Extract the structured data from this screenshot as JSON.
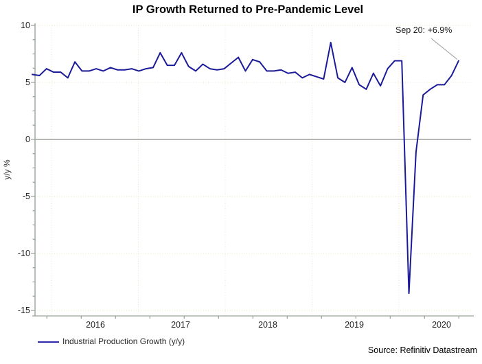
{
  "title": "IP Growth Returned to Pre-Pandemic Level",
  "annotation": {
    "text": "Sep 20: +6.9%",
    "points_to": "2020-09"
  },
  "legend": {
    "label": "Industrial Production Growth (y/y)"
  },
  "source": "Source: Refinitiv Datastream",
  "y_axis_label": "y/y %",
  "chart_data": {
    "type": "line",
    "title": "IP Growth Returned to Pre-Pandemic Level",
    "ylabel": "y/y %",
    "xlabel": "",
    "ylim": [
      -15.5,
      10
    ],
    "grid": "dotted",
    "legend_position": "bottom-left",
    "y_ticks": [
      10,
      5,
      0,
      -5,
      -10,
      -15
    ],
    "y_tick_labels": [
      "10",
      "5",
      "0",
      "-5",
      "-10",
      "-15"
    ],
    "x_tick_labels": [
      "2016",
      "2017",
      "2018",
      "2019",
      "2020"
    ],
    "x": [
      "2015-09",
      "2015-10",
      "2015-11",
      "2015-12",
      "2016-01",
      "2016-02",
      "2016-03",
      "2016-04",
      "2016-05",
      "2016-06",
      "2016-07",
      "2016-08",
      "2016-09",
      "2016-10",
      "2016-11",
      "2016-12",
      "2017-01",
      "2017-02",
      "2017-03",
      "2017-04",
      "2017-05",
      "2017-06",
      "2017-07",
      "2017-08",
      "2017-09",
      "2017-10",
      "2017-11",
      "2017-12",
      "2018-01",
      "2018-02",
      "2018-03",
      "2018-04",
      "2018-05",
      "2018-06",
      "2018-07",
      "2018-08",
      "2018-09",
      "2018-10",
      "2018-11",
      "2018-12",
      "2019-01",
      "2019-02",
      "2019-03",
      "2019-04",
      "2019-05",
      "2019-06",
      "2019-07",
      "2019-08",
      "2019-09",
      "2019-10",
      "2019-11",
      "2019-12",
      "2020-01",
      "2020-02",
      "2020-03",
      "2020-04",
      "2020-05",
      "2020-06",
      "2020-07",
      "2020-08",
      "2020-09"
    ],
    "series": [
      {
        "name": "Industrial Production Growth (y/y)",
        "values": [
          5.7,
          5.6,
          6.2,
          5.9,
          5.9,
          5.4,
          6.8,
          6.0,
          6.0,
          6.2,
          6.0,
          6.3,
          6.1,
          6.1,
          6.2,
          6.0,
          6.2,
          6.3,
          7.6,
          6.5,
          6.5,
          7.6,
          6.4,
          6.0,
          6.6,
          6.2,
          6.1,
          6.2,
          6.7,
          7.2,
          6.0,
          7.0,
          6.8,
          6.0,
          6.0,
          6.1,
          5.8,
          5.9,
          5.4,
          5.7,
          5.5,
          5.3,
          8.5,
          5.4,
          5.0,
          6.3,
          4.8,
          4.4,
          5.8,
          4.7,
          6.2,
          6.9,
          6.9,
          -13.5,
          -1.1,
          3.9,
          4.4,
          4.8,
          4.8,
          5.6,
          6.9
        ]
      }
    ],
    "colors": {
      "line": "#1a1a99",
      "zero_line": "#a9ada9",
      "axis": "#9aa29a",
      "grid_horizontal": "#dfe7c6",
      "grid_vertical": "#f4e2c6",
      "annotation_line": "#999999"
    }
  }
}
